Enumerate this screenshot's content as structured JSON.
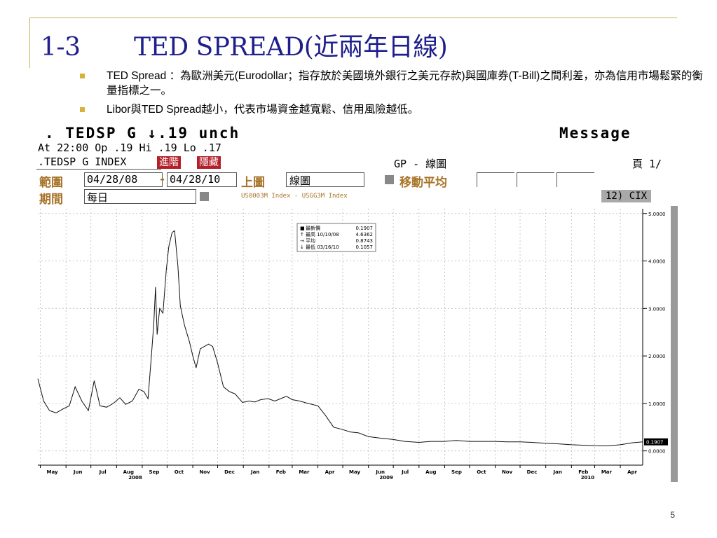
{
  "slide": {
    "title_number": "1-3",
    "title_text": "TED SPREAD(近兩年日線)",
    "bullets": [
      "TED Spread ：為歐洲美元(Eurodollar；指存放於美國境外銀行之美元存款)與國庫券(T-Bill)之間利差，亦為信用市場鬆緊的衡量指標之一。",
      "Libor與TED Spread越小，代表市場資金越寬鬆、信用風險越低。"
    ],
    "page_number": "5"
  },
  "terminal": {
    "ticker_line": ". TEDSP G ↓.19 unch",
    "message": "Message",
    "quote_line": "At 22:00  Op .19 Hi .19 Lo .17",
    "index_name": ".TEDSP G INDEX",
    "advanced_btn": "進階",
    "hide_btn": "隱藏",
    "chart_mode": "GP - 線圖",
    "page_label": "頁 1/",
    "range_label": "範圍",
    "range_from": "04/28/08",
    "range_sep": "-",
    "range_to": "04/28/10",
    "upper_chart_label": "上圖",
    "upper_chart_value": "線圖",
    "moving_avg_label": "移動平均",
    "period_label": "期間",
    "period_value": "每日",
    "formula": "US0003M Index - USGG3M Index",
    "cix": "12) CIX"
  },
  "chart_data": {
    "type": "line",
    "series": [
      {
        "x": [
          "2008-04-28",
          "2008-05-05",
          "2008-05-12",
          "2008-05-20",
          "2008-05-28",
          "2008-06-05",
          "2008-06-12",
          "2008-06-20",
          "2008-06-28",
          "2008-07-05",
          "2008-07-12",
          "2008-07-20",
          "2008-07-28",
          "2008-08-05",
          "2008-08-12",
          "2008-08-20",
          "2008-08-28",
          "2008-09-03",
          "2008-09-08",
          "2008-09-12",
          "2008-09-15",
          "2008-09-17",
          "2008-09-19",
          "2008-09-22",
          "2008-09-26",
          "2008-09-30",
          "2008-10-03",
          "2008-10-07",
          "2008-10-10",
          "2008-10-14",
          "2008-10-17",
          "2008-10-22",
          "2008-10-28",
          "2008-11-01",
          "2008-11-05",
          "2008-11-10",
          "2008-11-15",
          "2008-11-20",
          "2008-11-25",
          "2008-12-01",
          "2008-12-08",
          "2008-12-15",
          "2008-12-22",
          "2008-12-31",
          "2009-01-08",
          "2009-01-15",
          "2009-01-22",
          "2009-01-31",
          "2009-02-08",
          "2009-02-15",
          "2009-02-22",
          "2009-03-01",
          "2009-03-10",
          "2009-03-20",
          "2009-04-01",
          "2009-04-10",
          "2009-04-20",
          "2009-05-01",
          "2009-05-10",
          "2009-05-20",
          "2009-06-01",
          "2009-06-15",
          "2009-07-01",
          "2009-07-15",
          "2009-08-01",
          "2009-08-15",
          "2009-09-01",
          "2009-09-15",
          "2009-10-01",
          "2009-10-15",
          "2009-11-01",
          "2009-11-15",
          "2009-12-01",
          "2009-12-15",
          "2010-01-01",
          "2010-01-15",
          "2010-02-01",
          "2010-02-15",
          "2010-03-01",
          "2010-03-16",
          "2010-04-01",
          "2010-04-15",
          "2010-04-28"
        ],
        "values": [
          1.52,
          1.05,
          0.85,
          0.8,
          0.88,
          0.95,
          1.35,
          1.05,
          0.85,
          1.48,
          0.95,
          0.92,
          1.0,
          1.12,
          0.98,
          1.05,
          1.3,
          1.25,
          1.1,
          2.0,
          2.7,
          3.45,
          2.45,
          3.0,
          2.9,
          3.8,
          4.3,
          4.6,
          4.6362,
          3.9,
          3.05,
          2.65,
          2.3,
          2.0,
          1.75,
          2.15,
          2.2,
          2.25,
          2.2,
          1.85,
          1.35,
          1.25,
          1.2,
          1.02,
          1.05,
          1.03,
          1.08,
          1.1,
          1.05,
          1.1,
          1.15,
          1.08,
          1.05,
          1.0,
          0.95,
          0.75,
          0.5,
          0.45,
          0.4,
          0.38,
          0.3,
          0.27,
          0.24,
          0.2,
          0.18,
          0.2,
          0.2,
          0.22,
          0.2,
          0.2,
          0.2,
          0.19,
          0.19,
          0.18,
          0.16,
          0.15,
          0.13,
          0.12,
          0.11,
          0.1057,
          0.13,
          0.17,
          0.19
        ]
      }
    ],
    "x_ticks": [
      "May",
      "Jun",
      "Jul",
      "Aug",
      "Sep",
      "Oct",
      "Nov",
      "Dec",
      "Jan",
      "Feb",
      "Mar",
      "Apr",
      "May",
      "Jun",
      "Jul",
      "Aug",
      "Sep",
      "Oct",
      "Nov",
      "Dec",
      "Jan",
      "Feb",
      "Mar",
      "Apr"
    ],
    "x_years": [
      "2008",
      "2009",
      "2010"
    ],
    "y_ticks": [
      "5.0000",
      "4.0000",
      "3.0000",
      "2.0000",
      "1.0000",
      "0.0000"
    ],
    "ylim": [
      -0.3,
      5.1
    ],
    "last_value_label": "0.1907",
    "legend": [
      {
        "label": "最新價",
        "date": "",
        "value": "0.1907"
      },
      {
        "label": "最高",
        "date": "10/10/08",
        "value": "4.6362"
      },
      {
        "label": "平均",
        "date": "",
        "value": "0.8743"
      },
      {
        "label": "最低",
        "date": "03/16/10",
        "value": "0.1057"
      }
    ],
    "legend_placement": "top-left",
    "grid": true
  },
  "colors": {
    "title": "#1e1e8c",
    "bullet": "#d6b23a",
    "terminal_orange": "#a8742a",
    "btn_red": "#b4202a"
  }
}
